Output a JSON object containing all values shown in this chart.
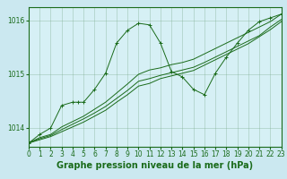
{
  "background_color": "#cbe8f0",
  "plot_bg_color": "#d6f0f5",
  "grid_color": "#7aaa8a",
  "line_color": "#1a6b1a",
  "title": "Graphe pression niveau de la mer (hPa)",
  "xlim": [
    0,
    23
  ],
  "ylim": [
    1013.65,
    1016.25
  ],
  "yticks": [
    1014,
    1015,
    1016
  ],
  "xticks": [
    0,
    1,
    2,
    3,
    4,
    5,
    6,
    7,
    8,
    9,
    10,
    11,
    12,
    13,
    14,
    15,
    16,
    17,
    18,
    19,
    20,
    21,
    22,
    23
  ],
  "s1_x": [
    0,
    1,
    2,
    3,
    4,
    4.5,
    5,
    6,
    7,
    8,
    9,
    10,
    11,
    12,
    13,
    14,
    15,
    16,
    17,
    18,
    19,
    20,
    21,
    22,
    23
  ],
  "s1_y": [
    1013.72,
    1013.88,
    1014.0,
    1014.42,
    1014.48,
    1014.48,
    1014.48,
    1014.72,
    1015.02,
    1015.58,
    1015.82,
    1015.95,
    1015.92,
    1015.58,
    1015.05,
    1014.95,
    1014.72,
    1014.62,
    1015.02,
    1015.32,
    1015.58,
    1015.82,
    1015.98,
    1016.05,
    1016.12
  ],
  "s2_x": [
    0,
    1,
    2,
    3,
    4,
    5,
    6,
    7,
    8,
    9,
    10,
    11,
    12,
    13,
    14,
    15,
    16,
    17,
    18,
    19,
    20,
    21,
    22,
    23
  ],
  "s2_y": [
    1013.72,
    1013.82,
    1013.88,
    1014.02,
    1014.12,
    1014.22,
    1014.35,
    1014.48,
    1014.65,
    1014.82,
    1015.0,
    1015.08,
    1015.12,
    1015.18,
    1015.22,
    1015.28,
    1015.38,
    1015.48,
    1015.58,
    1015.68,
    1015.78,
    1015.88,
    1015.98,
    1016.12
  ],
  "s3_x": [
    0,
    1,
    2,
    3,
    4,
    5,
    6,
    7,
    8,
    9,
    10,
    11,
    12,
    13,
    14,
    15,
    16,
    17,
    18,
    19,
    20,
    21,
    22,
    23
  ],
  "s3_y": [
    1013.72,
    1013.8,
    1013.86,
    1013.97,
    1014.07,
    1014.17,
    1014.28,
    1014.4,
    1014.55,
    1014.7,
    1014.87,
    1014.92,
    1014.98,
    1015.03,
    1015.08,
    1015.13,
    1015.22,
    1015.32,
    1015.42,
    1015.52,
    1015.62,
    1015.72,
    1015.88,
    1016.02
  ],
  "s4_x": [
    0,
    1,
    2,
    3,
    4,
    5,
    6,
    7,
    8,
    9,
    10,
    11,
    12,
    13,
    14,
    15,
    16,
    17,
    18,
    19,
    20,
    21,
    22,
    23
  ],
  "s4_y": [
    1013.72,
    1013.78,
    1013.84,
    1013.93,
    1014.02,
    1014.11,
    1014.22,
    1014.33,
    1014.48,
    1014.62,
    1014.78,
    1014.83,
    1014.92,
    1014.97,
    1015.02,
    1015.07,
    1015.17,
    1015.27,
    1015.37,
    1015.47,
    1015.57,
    1015.7,
    1015.83,
    1015.98
  ],
  "title_fontsize": 7,
  "tick_fontsize": 5.5
}
